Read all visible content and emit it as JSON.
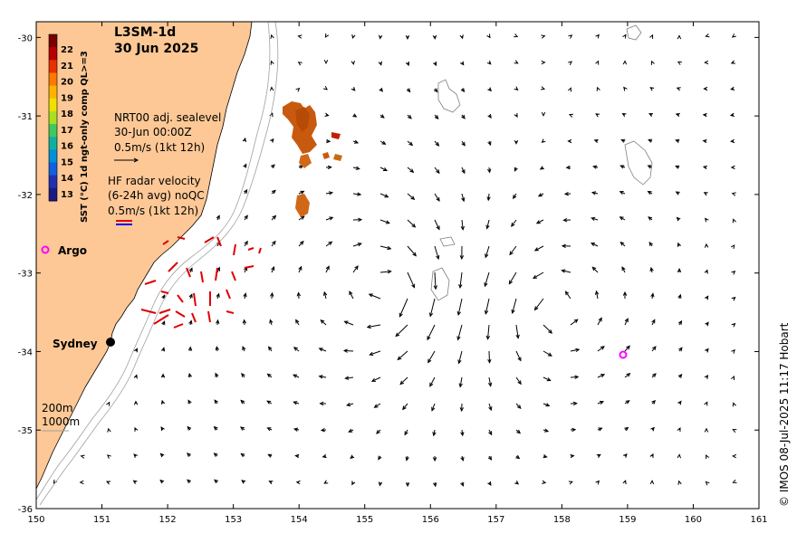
{
  "title": {
    "product": "L3SM-1d",
    "date": "30 Jun 2025"
  },
  "colorbar": {
    "label": "SST (°C) 1d ngt-only comp QL>=3",
    "ticks": [
      "22",
      "21",
      "20",
      "19",
      "18",
      "17",
      "16",
      "15",
      "14",
      "13"
    ],
    "colors": [
      "#7a0000",
      "#b80000",
      "#e83000",
      "#ff7800",
      "#ffb400",
      "#f0e000",
      "#a8e020",
      "#40c860",
      "#10b0a0",
      "#0090d8",
      "#1060e0",
      "#2030b0",
      "#1a1a80"
    ]
  },
  "sealevel_legend": {
    "line1": "NRT00 adj. sealevel",
    "line2": "30-Jun 00:00Z",
    "line3": "0.5m/s (1kt 12h)"
  },
  "radar_legend": {
    "line1": "HF radar velocity",
    "line2": "(6-24h avg) noQC",
    "line3": "0.5m/s (1kt 12h)"
  },
  "places": {
    "argo": "Argo",
    "sydney": "Sydney"
  },
  "depth_legend": {
    "d200": "200m",
    "d1000": "1000m"
  },
  "credit": "© IMOS 08-Jul-2025 11:17 Hobart",
  "axes": {
    "x_ticks": [
      "150",
      "151",
      "152",
      "153",
      "154",
      "155",
      "156",
      "157",
      "158",
      "159",
      "160",
      "161"
    ],
    "y_ticks": [
      "-30",
      "-31",
      "-32",
      "-33",
      "-34",
      "-35",
      "-36"
    ],
    "xlim": [
      150,
      161
    ],
    "ylim": [
      -36,
      -29.8
    ]
  },
  "colors": {
    "land": "#fdc896",
    "argo": "#ff00ff",
    "radar_red": "#e00000",
    "radar_blue": "#0000ff"
  }
}
